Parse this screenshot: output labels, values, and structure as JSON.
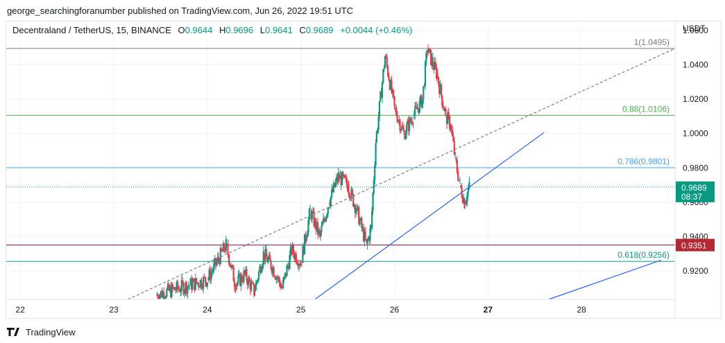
{
  "header": {
    "published_line": "george_searchingforanumber published on TradingView.com, Jun 26, 2022 19:51 UTC"
  },
  "legend": {
    "symbol": "Decentraland / TetherUS, 15, BINANCE",
    "open_key": "O",
    "open": "0.9644",
    "high_key": "H",
    "high": "0.9696",
    "low_key": "L",
    "low": "0.9641",
    "close_key": "C",
    "close": "0.9689",
    "change": "+0.0044 (+0.46%)"
  },
  "footer": {
    "logo_icon": "tradingview-logo-icon",
    "brand": "TradingView"
  },
  "colors": {
    "up": "#089981",
    "down": "#f23645",
    "blue_line": "#2962ff",
    "fib_1": "#787b86",
    "fib_088": "#4caf50",
    "fib_0786": "#42a5f5",
    "fib_0618": "#089981",
    "hline_dark_red": "#880e4f",
    "price_label": "#089981",
    "hline_label": "#b22833"
  },
  "chart_data": {
    "type": "candlestick",
    "title": "",
    "xlabel": "",
    "ylabel": "",
    "y_unit": "USDT",
    "x_ticks": [
      "22",
      "23",
      "24",
      "25",
      "26",
      "27",
      "28"
    ],
    "x_ticks_bold": [
      "27"
    ],
    "y_ticks": [
      "0.9200",
      "0.9400",
      "0.9600",
      "0.9800",
      "1.0000",
      "1.0200",
      "1.0400",
      "1.0600"
    ],
    "ylim": [
      0.9035,
      1.0652
    ],
    "xlim": [
      21.85,
      29.0
    ],
    "grid": true,
    "last_price": {
      "value": 0.9689,
      "label": "0.9689",
      "countdown": "08:37"
    },
    "horizontal_lines": [
      {
        "value": 1.0495,
        "label": "1(1.0495)",
        "color_key": "fib_1"
      },
      {
        "value": 1.0106,
        "label": "0.88(1.0106)",
        "color_key": "fib_088"
      },
      {
        "value": 0.9801,
        "label": "0.786(0.9801)",
        "color_key": "fib_0786"
      },
      {
        "value": 0.9256,
        "label": "0.618(0.9256)",
        "color_key": "fib_0618"
      },
      {
        "value": 0.9351,
        "label": "",
        "color_key": "hline_dark_red",
        "axis_label": "0.9351"
      }
    ],
    "trend_lines": [
      {
        "style": "dashed",
        "color_key": "fib_1",
        "points": [
          [
            23.15,
            0.9035
          ],
          [
            29.0,
            1.0495
          ]
        ]
      },
      {
        "style": "solid",
        "color_key": "blue_line",
        "points": [
          [
            25.15,
            0.9035
          ],
          [
            27.6,
            1.0006
          ]
        ]
      },
      {
        "style": "solid",
        "color_key": "blue_line",
        "points": [
          [
            27.65,
            0.9035
          ],
          [
            28.85,
            0.9263
          ]
        ]
      }
    ],
    "series": [
      {
        "name": "",
        "x": [
          23.45,
          24.0
        ],
        "y": [
          0.906,
          0.915
        ]
      },
      {
        "name": "",
        "x": [
          24.0,
          24.1,
          24.2,
          24.3,
          24.4,
          24.5,
          24.6,
          24.7,
          24.8,
          24.9,
          25.0
        ],
        "y": [
          0.915,
          0.925,
          0.935,
          0.912,
          0.918,
          0.908,
          0.93,
          0.922,
          0.91,
          0.932,
          0.925
        ]
      },
      {
        "name": "",
        "x": [
          25.0,
          25.1,
          25.2,
          25.3,
          25.4,
          25.5,
          25.6,
          25.7,
          25.75,
          25.8,
          25.9,
          26.0
        ],
        "y": [
          0.925,
          0.955,
          0.94,
          0.96,
          0.975,
          0.97,
          0.955,
          0.935,
          0.945,
          0.995,
          1.045,
          1.015
        ]
      },
      {
        "name": "",
        "x": [
          26.0,
          26.1,
          26.2,
          26.3,
          26.35,
          26.45,
          26.55,
          26.6,
          26.65,
          26.7,
          26.75,
          26.8
        ],
        "y": [
          1.015,
          1.0,
          1.01,
          1.02,
          1.049,
          1.035,
          1.01,
          1.005,
          0.985,
          0.97,
          0.96,
          0.969
        ]
      }
    ]
  }
}
